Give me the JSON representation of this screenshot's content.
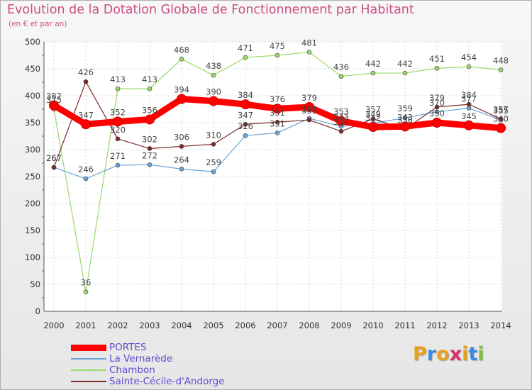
{
  "title": "Evolution de la Dotation Globale de Fonctionnement par Habitant",
  "subtitle": "(en € et par an)",
  "logo": {
    "letters": [
      "P",
      "r",
      "o",
      "x",
      "i",
      "t",
      "i"
    ],
    "colors": [
      "#e8a020",
      "#3d8bd8",
      "#e8a020",
      "#d83070",
      "#e8a020",
      "#3d8bd8",
      "#80c040"
    ]
  },
  "chart_data": {
    "type": "line",
    "x": [
      "2000",
      "2001",
      "2002",
      "2003",
      "2004",
      "2005",
      "2006",
      "2007",
      "2008",
      "2009",
      "2010",
      "2011",
      "2012",
      "2013",
      "2014"
    ],
    "y_ticks": [
      "0",
      "50",
      "100",
      "150",
      "200",
      "250",
      "300",
      "350",
      "400",
      "450",
      "500"
    ],
    "ylim": [
      0,
      500
    ],
    "grid": true,
    "legend_position": "bottom",
    "series": [
      {
        "name": "PORTES",
        "color": "#ff0000",
        "values": [
          382,
          347,
          352,
          356,
          394,
          390,
          384,
          376,
          379,
          353,
          342,
          343,
          350,
          345,
          340
        ]
      },
      {
        "name": "La Vernarède",
        "color": "#6aa3d6",
        "values": [
          267,
          246,
          271,
          272,
          264,
          259,
          326,
          331,
          358,
          343,
          349,
          359,
          370,
          377,
          355
        ]
      },
      {
        "name": "Chambon",
        "color": "#99d96a",
        "values": [
          375,
          36,
          413,
          413,
          468,
          438,
          471,
          475,
          481,
          436,
          442,
          442,
          451,
          454,
          448
        ]
      },
      {
        "name": "Sainte-Cécile-d'Andorge",
        "color": "#7a2a2a",
        "values": [
          267,
          426,
          320,
          302,
          306,
          310,
          347,
          351,
          355,
          334,
          357,
          338,
          379,
          384,
          357
        ]
      }
    ]
  }
}
